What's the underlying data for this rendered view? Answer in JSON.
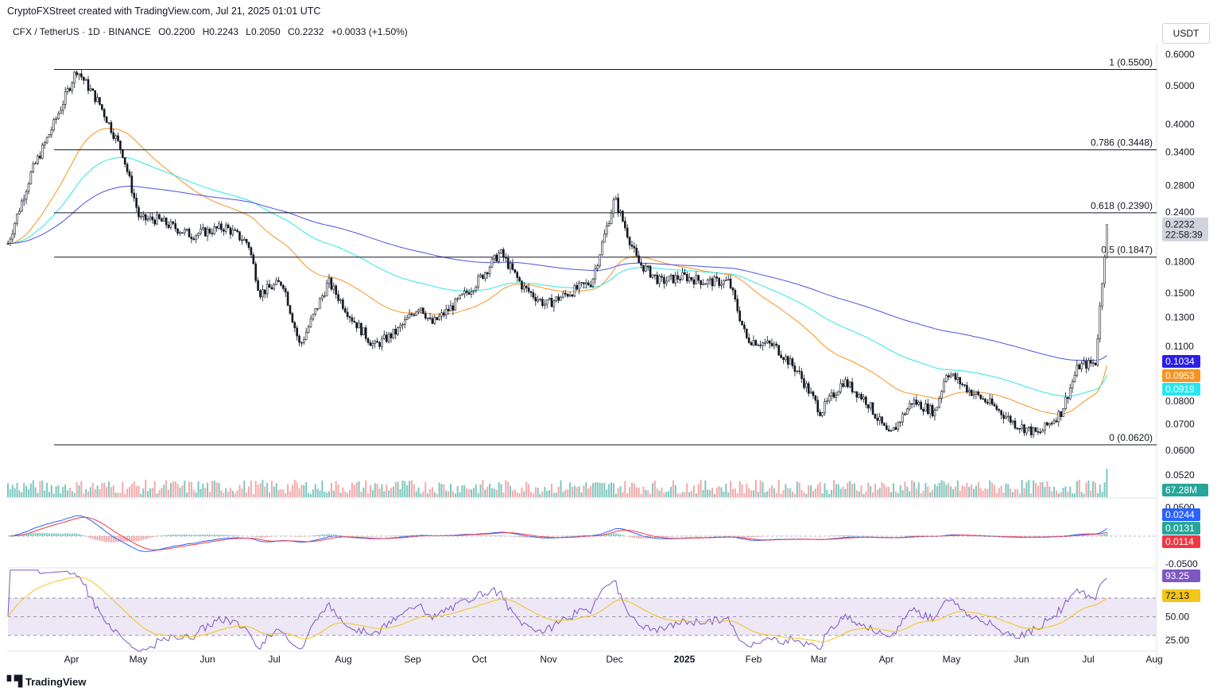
{
  "header": {
    "attribution": "CryptoFXStreet created with TradingView.com, Jul 21, 2025 01:01 UTC"
  },
  "legend": {
    "symbol": "CFX / TetherUS · 1D · BINANCE",
    "open": "O0.2200",
    "high": "H0.2243",
    "low": "L0.2050",
    "close": "C0.2232",
    "change": "+0.0033 (+1.50%)"
  },
  "currency_label": "USDT",
  "footer": {
    "logo_text": "TradingView"
  },
  "colors": {
    "up_volume": "#7cc7bf",
    "down_volume": "#f2a9a9",
    "ema50": "#f7931e",
    "ema100": "#2ee6e6",
    "ema200": "#5050e0",
    "macd_line": "#2962ff",
    "signal_line": "#f23645",
    "rsi_line": "#7e57c2",
    "rsi_ma": "#f5c518",
    "rsi_band": "#ede7f6"
  },
  "chart_data": {
    "type": "candlestick",
    "symbol": "CFX/USDT",
    "timeframe": "1D",
    "exchange": "BINANCE",
    "y_scale": "log",
    "ylim": [
      0.047,
      0.66
    ],
    "price_ticks": [
      "0.6000",
      "0.5000",
      "0.4000",
      "0.3400",
      "0.2800",
      "0.2400",
      "0.1800",
      "0.1500",
      "0.1300",
      "0.1100",
      "0.0800",
      "0.0700",
      "0.0600",
      "0.0520"
    ],
    "x_month_labels": [
      "Apr",
      "May",
      "Jun",
      "Jul",
      "Aug",
      "Sep",
      "Oct",
      "Nov",
      "Dec",
      "2025",
      "Feb",
      "Mar",
      "Apr",
      "May",
      "Jun",
      "Jul",
      "Aug"
    ],
    "price_series_approx": [
      [
        0,
        0.2
      ],
      [
        0.02,
        0.3
      ],
      [
        0.04,
        0.4
      ],
      [
        0.06,
        0.55
      ],
      [
        0.08,
        0.45
      ],
      [
        0.1,
        0.34
      ],
      [
        0.115,
        0.23
      ],
      [
        0.13,
        0.23
      ],
      [
        0.16,
        0.21
      ],
      [
        0.19,
        0.22
      ],
      [
        0.21,
        0.2
      ],
      [
        0.22,
        0.15
      ],
      [
        0.24,
        0.16
      ],
      [
        0.255,
        0.11
      ],
      [
        0.28,
        0.16
      ],
      [
        0.3,
        0.13
      ],
      [
        0.32,
        0.11
      ],
      [
        0.34,
        0.12
      ],
      [
        0.36,
        0.14
      ],
      [
        0.37,
        0.125
      ],
      [
        0.39,
        0.14
      ],
      [
        0.41,
        0.16
      ],
      [
        0.43,
        0.19
      ],
      [
        0.45,
        0.155
      ],
      [
        0.47,
        0.14
      ],
      [
        0.49,
        0.15
      ],
      [
        0.51,
        0.16
      ],
      [
        0.53,
        0.26
      ],
      [
        0.55,
        0.18
      ],
      [
        0.57,
        0.16
      ],
      [
        0.59,
        0.165
      ],
      [
        0.61,
        0.16
      ],
      [
        0.63,
        0.16
      ],
      [
        0.645,
        0.115
      ],
      [
        0.67,
        0.11
      ],
      [
        0.69,
        0.095
      ],
      [
        0.71,
        0.075
      ],
      [
        0.73,
        0.09
      ],
      [
        0.75,
        0.08
      ],
      [
        0.77,
        0.065
      ],
      [
        0.79,
        0.08
      ],
      [
        0.81,
        0.075
      ],
      [
        0.82,
        0.095
      ],
      [
        0.84,
        0.085
      ],
      [
        0.86,
        0.078
      ],
      [
        0.88,
        0.07
      ],
      [
        0.9,
        0.066
      ],
      [
        0.92,
        0.075
      ],
      [
        0.935,
        0.098
      ],
      [
        0.95,
        0.1
      ],
      [
        0.96,
        0.2232
      ]
    ],
    "fibonacci_levels": [
      {
        "label": "1 (0.5500)",
        "value": 0.55
      },
      {
        "label": "0.786 (0.3448)",
        "value": 0.3448
      },
      {
        "label": "0.618 (0.2390)",
        "value": 0.239
      },
      {
        "label": "0.5 (0.1847)",
        "value": 0.1847
      },
      {
        "label": "0 (0.0620)",
        "value": 0.062
      }
    ],
    "moving_averages": [
      {
        "name": "EMA 200",
        "value": 0.1034,
        "label": "0.1034",
        "color": "#2b1ee8"
      },
      {
        "name": "EMA 50",
        "value": 0.0953,
        "label": "0.0953",
        "color": "#f7931e"
      },
      {
        "name": "EMA 100",
        "value": 0.0919,
        "label": "0.0919",
        "color": "#26e6f0"
      }
    ],
    "last_price": {
      "value": 0.2232,
      "label": "0.2232",
      "countdown": "22:58:39"
    },
    "volume": {
      "label": "67.28M"
    },
    "macd": {
      "ticks": [
        "0.0500",
        "-0.0500"
      ],
      "macd_label": "0.0244",
      "histogram_label": "0.0131",
      "signal_label": "0.0114"
    },
    "rsi": {
      "ticks": [
        "50.00",
        "25.00"
      ],
      "rsi_label": "93.25",
      "rsi_ma_label": "72.13",
      "upper_band": 70,
      "lower_band": 30
    }
  }
}
